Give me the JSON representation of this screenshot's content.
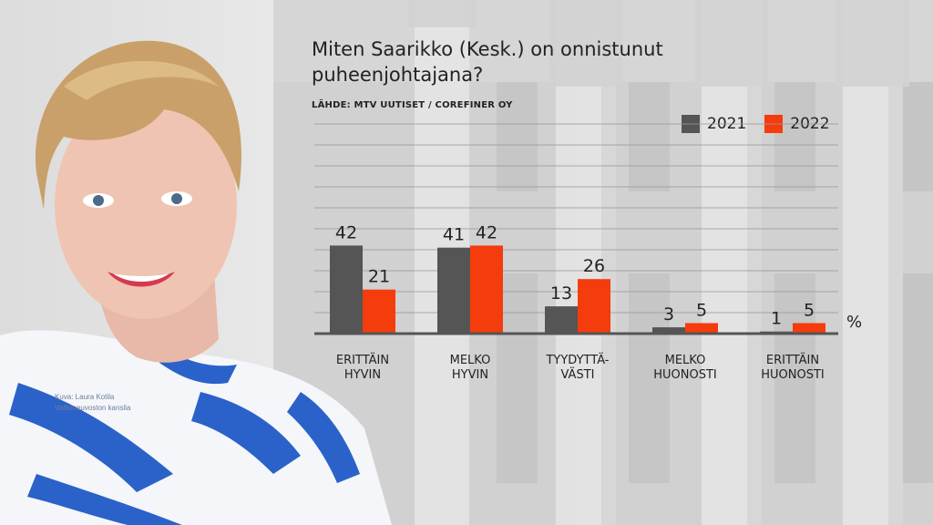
{
  "chart_data": {
    "type": "bar",
    "title": "Miten Saarikko (Kesk.) on onnistunut puheenjohtajana?",
    "source": "LÄHDE: MTV UUTISET / COREFINER OY",
    "unit": "%",
    "categories": [
      [
        "ERITTÄIN",
        "HYVIN"
      ],
      [
        "MELKO",
        "HYVIN"
      ],
      [
        "TYYDYTTÄ-",
        "VÄSTI"
      ],
      [
        "MELKO",
        "HUONOSTI"
      ],
      [
        "ERITTÄIN",
        "HUONOSTI"
      ]
    ],
    "series": [
      {
        "name": "2021",
        "color": "#555555",
        "values": [
          42,
          41,
          13,
          3,
          1
        ]
      },
      {
        "name": "2022",
        "color": "#f43c0c",
        "values": [
          21,
          42,
          26,
          5,
          5
        ]
      }
    ],
    "ylim": [
      0,
      100
    ],
    "legend": "top-right",
    "grid": true
  },
  "photo_credit": [
    "Kuva: Laura Kotila",
    "Valtioneuvoston kanslia"
  ]
}
